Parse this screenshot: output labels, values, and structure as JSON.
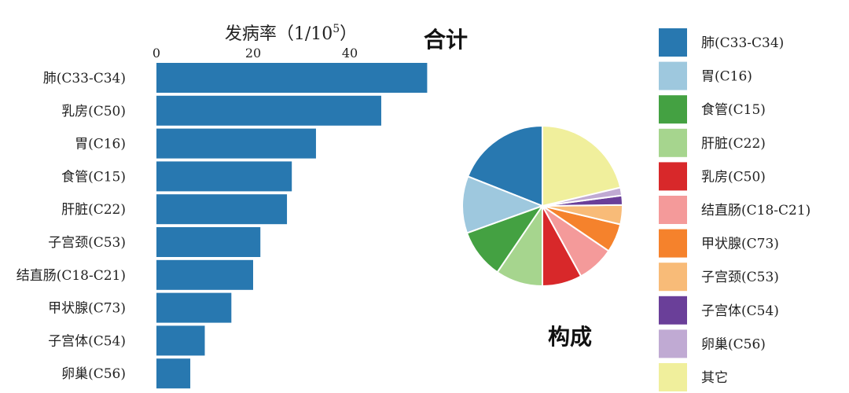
{
  "bar_chart": {
    "axis_title_prefix": "发病率（1/10",
    "axis_title_exponent": "5",
    "axis_title_suffix": "）",
    "panel_title": "合计"
  },
  "pie_chart": {
    "panel_title": "构成"
  },
  "chart_data": [
    {
      "type": "bar",
      "orientation": "horizontal",
      "title": "合计",
      "xlabel": "发病率（1/10^5）",
      "xlim": [
        0,
        55
      ],
      "xticks": [
        0,
        20,
        40
      ],
      "categories": [
        "肺(C33-C34)",
        "乳房(C50)",
        "胃(C16)",
        "食管(C15)",
        "肝脏(C22)",
        "子宫颈(C53)",
        "结直肠(C18-C21)",
        "甲状腺(C73)",
        "子宫体(C54)",
        "卵巢(C56)"
      ],
      "values": [
        56.0,
        46.5,
        33.0,
        28.0,
        27.0,
        21.5,
        20.0,
        15.5,
        10.0,
        7.0
      ],
      "color": "#2878b0"
    },
    {
      "type": "pie",
      "title": "构成",
      "legend_position": "right",
      "labels": [
        "肺(C33-C34)",
        "胃(C16)",
        "食管(C15)",
        "肝脏(C22)",
        "乳房(C50)",
        "结直肠(C18-C21)",
        "甲状腺(C73)",
        "子宫颈(C53)",
        "子宫体(C54)",
        "卵巢(C56)",
        "其它"
      ],
      "values": [
        19.0,
        11.5,
        10.0,
        9.5,
        8.0,
        7.5,
        5.8,
        3.9,
        1.9,
        1.6,
        21.3
      ],
      "colors": [
        "#2878b0",
        "#9ec8de",
        "#44a142",
        "#a6d58e",
        "#d8282a",
        "#f49a9a",
        "#f5822c",
        "#f8bb78",
        "#6a3f99",
        "#c0aad3",
        "#f0ef9c"
      ]
    }
  ]
}
